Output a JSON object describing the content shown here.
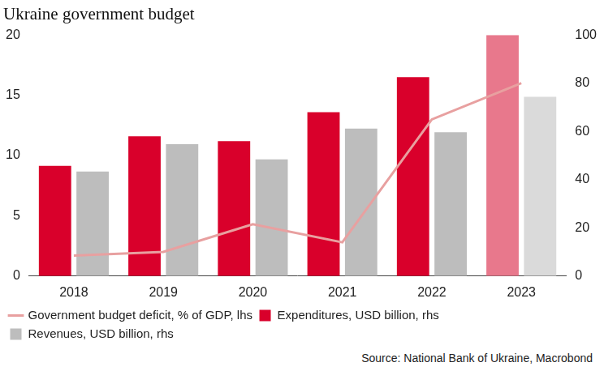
{
  "chart_data": {
    "type": "bar",
    "title": "Ukraine government budget",
    "source": "Source: National Bank of Ukraine, Macrobond",
    "categories": [
      "2018",
      "2019",
      "2020",
      "2021",
      "2022",
      "2023"
    ],
    "series": [
      {
        "name": "Government budget deficit, % of GDP, lhs",
        "type": "line",
        "color": "#e8a0a0",
        "values": [
          1.7,
          2.0,
          4.3,
          2.8,
          13.0,
          16.0
        ]
      },
      {
        "name": "Expenditures, USD billion, rhs",
        "type": "bar",
        "axis": "y2",
        "colors": [
          "#d9002b",
          "#d9002b",
          "#d9002b",
          "#d9002b",
          "#d9002b",
          "#e8788c"
        ],
        "values": [
          45.7,
          58.0,
          56.0,
          68.0,
          82.5,
          100.0
        ]
      },
      {
        "name": "Revenues, USD billion, rhs",
        "type": "bar",
        "axis": "y2",
        "colors": [
          "#bdbdbd",
          "#bdbdbd",
          "#bdbdbd",
          "#bdbdbd",
          "#bdbdbd",
          "#dadada"
        ],
        "values": [
          43.4,
          54.7,
          48.4,
          61.2,
          59.7,
          74.4
        ]
      }
    ],
    "ylim": [
      0,
      20
    ],
    "yticks": [
      0,
      5,
      10,
      15,
      20
    ],
    "y2lim": [
      0,
      100
    ],
    "y2ticks": [
      0,
      20,
      40,
      60,
      80,
      100
    ],
    "grid": false,
    "legend": "bottom"
  }
}
